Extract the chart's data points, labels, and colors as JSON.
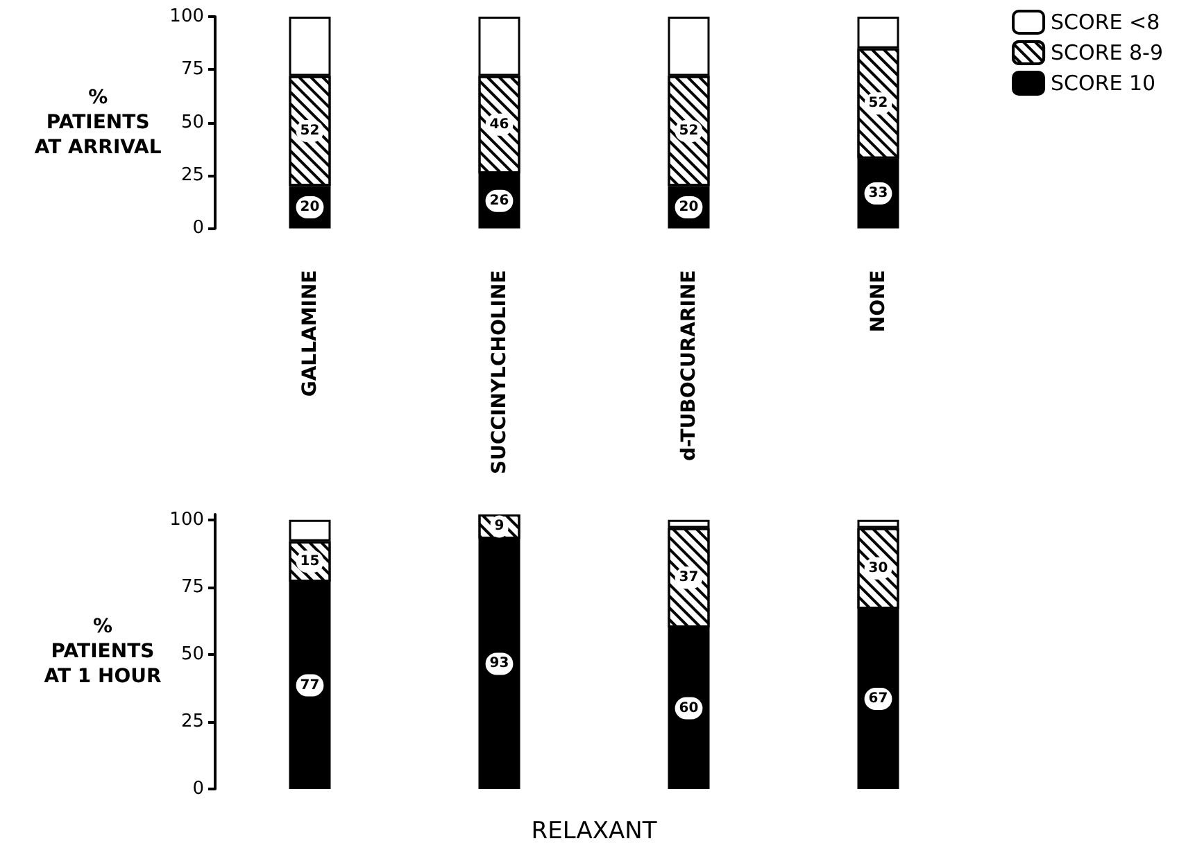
{
  "chart_data": [
    {
      "type": "bar",
      "stacked": true,
      "categories": [
        "GALLAMINE",
        "SUCCINYLCHOLINE",
        "d-TUBOCURARINE",
        "NONE"
      ],
      "ylabel": "%\nPATIENTS\nAT ARRIVAL",
      "ylim": [
        0,
        100
      ],
      "yticks": [
        0,
        25,
        50,
        75,
        100
      ],
      "legend": "top right",
      "series": [
        {
          "name": "SCORE 10",
          "color": "#000000",
          "values": [
            20,
            26,
            20,
            33
          ],
          "value_labels": [
            "20",
            "26",
            "20",
            "33"
          ]
        },
        {
          "name": "SCORE 8-9",
          "color": "#ffffff",
          "values": [
            52,
            46,
            52,
            52
          ],
          "value_labels": [
            "52",
            "46",
            "52",
            "52"
          ]
        },
        {
          "name": "SCORE <8",
          "color": "#ffffff",
          "values": [
            28,
            28,
            28,
            15
          ]
        }
      ]
    },
    {
      "type": "bar",
      "stacked": true,
      "categories": [
        null,
        null,
        null,
        null
      ],
      "ylabel": "%\nPATIENTS\nAT 1 HOUR",
      "xlabel": "RELAXANT",
      "ylim": [
        0,
        102
      ],
      "yticks": [
        0,
        25,
        50,
        75,
        100
      ],
      "tick_labels": "y",
      "series": [
        {
          "color": "#000000",
          "values": [
            77,
            93,
            60,
            67
          ],
          "value_labels": [
            "77",
            "93",
            "60",
            "67"
          ]
        },
        {
          "color": "#ffffff",
          "values": [
            15,
            9,
            37,
            30
          ],
          "value_labels": [
            "15",
            "9",
            "37",
            "30"
          ]
        },
        {
          "color": "#ffffff",
          "values": [
            8,
            null,
            3,
            3
          ]
        }
      ]
    }
  ]
}
